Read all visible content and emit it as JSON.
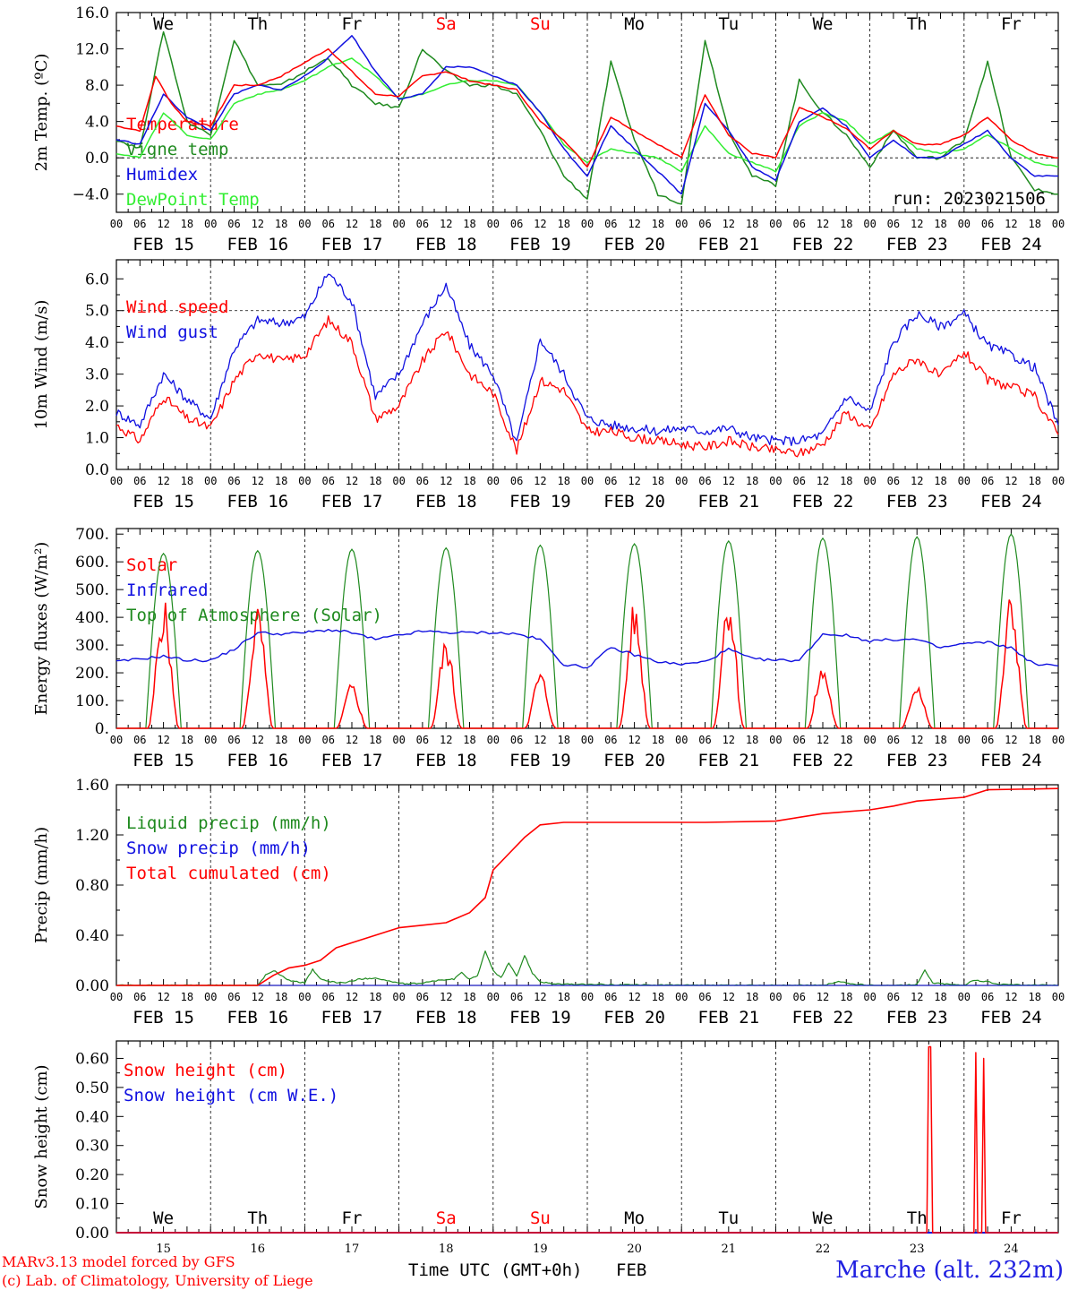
{
  "colors": {
    "temperature": "#ff0000",
    "vigne": "#1f8a1f",
    "humidex": "#1010e0",
    "dewpoint": "#33ee33",
    "wind_speed": "#ff0000",
    "wind_gust": "#1010e0",
    "solar": "#ff0000",
    "infrared": "#1010e0",
    "toa": "#1f8a1f",
    "liquid": "#1f8a1f",
    "snow_precip": "#1010e0",
    "cumulated": "#ff0000",
    "snow_height": "#ff0000",
    "snow_we": "#1010e0",
    "weekend": "#ff0000",
    "footer_site": "#2020e0",
    "credits": "#ff0000"
  },
  "days": {
    "weekday_labels": [
      "We",
      "Th",
      "Fr",
      "Sa",
      "Su",
      "Mo",
      "Tu",
      "We",
      "Th",
      "Fr"
    ],
    "weekend_flags": [
      false,
      false,
      false,
      true,
      true,
      false,
      false,
      false,
      false,
      false
    ],
    "date_labels": [
      "FEB 15",
      "FEB 16",
      "FEB 17",
      "FEB 18",
      "FEB 19",
      "FEB 20",
      "FEB 21",
      "FEB 22",
      "FEB 23",
      "FEB 24"
    ],
    "day_numbers": [
      "15",
      "16",
      "17",
      "18",
      "19",
      "20",
      "21",
      "22",
      "23",
      "24"
    ],
    "hour_ticks": [
      "00",
      "06",
      "12",
      "18"
    ],
    "final_tick": "00"
  },
  "run_label": "run: 2023021506",
  "footer": {
    "credit_line1": "MARv3.13 model forced by GFS",
    "credit_line2": "(c) Lab. of Climatology, University of Liege",
    "axis_title": "Time UTC (GMT+0h)",
    "month": "FEB",
    "site": "Marche (alt. 232m)"
  },
  "chart_data": [
    {
      "type": "line",
      "ylabel": "2m Temp. (ºC)",
      "x_unit": "hours since FEB 15 00 UTC",
      "ylim": [
        -6,
        16
      ],
      "yticks": [
        -4,
        0,
        4,
        8,
        12,
        16
      ],
      "ytick_labels": [
        "−4.0",
        "0.0",
        "4.0",
        "8.0",
        "12.0",
        "16.0"
      ],
      "reference_lines": [
        0
      ],
      "legend": [
        "Temperature",
        "Vigne temp",
        "Humidex",
        "DewPoint Temp"
      ],
      "series": [
        {
          "name": "Temperature",
          "color_key": "temperature",
          "x": [
            0,
            6,
            10,
            14,
            18,
            24,
            30,
            36,
            42,
            48,
            54,
            60,
            66,
            72,
            78,
            84,
            90,
            96,
            102,
            108,
            114,
            120,
            126,
            132,
            138,
            144,
            150,
            156,
            162,
            168,
            174,
            180,
            186,
            192,
            198,
            204,
            210,
            216,
            222,
            228,
            234,
            240
          ],
          "y": [
            3.5,
            3,
            9,
            6,
            4,
            3.5,
            8,
            8,
            9,
            10.5,
            12,
            9.5,
            7,
            6.8,
            9,
            9.5,
            8.5,
            8,
            7.5,
            4,
            2,
            -1,
            4.5,
            3,
            1.5,
            0,
            7,
            2.5,
            0.5,
            0,
            5.5,
            4.5,
            3.2,
            1,
            3,
            1.5,
            1.5,
            2.5,
            4.5,
            2,
            0.5,
            0
          ]
        },
        {
          "name": "Vigne temp",
          "color_key": "vigne",
          "x": [
            0,
            6,
            12,
            18,
            24,
            30,
            36,
            42,
            48,
            54,
            60,
            66,
            72,
            78,
            84,
            90,
            96,
            102,
            108,
            114,
            120,
            126,
            132,
            138,
            144,
            150,
            156,
            162,
            168,
            174,
            180,
            186,
            192,
            198,
            204,
            210,
            216,
            222,
            228,
            234,
            240
          ],
          "y": [
            2,
            1,
            14,
            4,
            2.5,
            13,
            8,
            8,
            9.5,
            11,
            8,
            6,
            5.5,
            12,
            9.5,
            8,
            8,
            7,
            3,
            -2,
            -4.5,
            10.5,
            2,
            -4,
            -5,
            13,
            3,
            -2,
            -3,
            8.5,
            5,
            2.5,
            -1,
            3,
            0,
            0,
            2,
            10.5,
            0,
            -3.5,
            -4
          ]
        },
        {
          "name": "Humidex",
          "color_key": "humidex",
          "x": [
            0,
            6,
            12,
            18,
            24,
            30,
            36,
            42,
            48,
            54,
            60,
            66,
            72,
            78,
            84,
            90,
            96,
            102,
            108,
            114,
            120,
            126,
            132,
            138,
            144,
            150,
            156,
            162,
            168,
            174,
            180,
            186,
            192,
            198,
            204,
            210,
            216,
            222,
            228,
            234,
            240
          ],
          "y": [
            2,
            1.5,
            7,
            4.5,
            3,
            7,
            8,
            7.5,
            9,
            11,
            13.5,
            9.5,
            6.5,
            7,
            10,
            10,
            9,
            8,
            5,
            1,
            -2,
            3.5,
            1,
            -1.5,
            -4,
            6,
            3,
            -1,
            -2.5,
            4,
            5.5,
            3.5,
            0,
            2,
            0,
            0,
            1.5,
            3,
            0,
            -2,
            -2
          ]
        },
        {
          "name": "DewPoint Temp",
          "color_key": "dewpoint",
          "x": [
            0,
            6,
            12,
            18,
            24,
            30,
            36,
            42,
            48,
            54,
            60,
            66,
            72,
            78,
            84,
            90,
            96,
            102,
            108,
            114,
            120,
            126,
            132,
            138,
            144,
            150,
            156,
            162,
            168,
            174,
            180,
            186,
            192,
            198,
            204,
            210,
            216,
            222,
            228,
            234,
            240
          ],
          "y": [
            0.5,
            0,
            5,
            2.5,
            2,
            6,
            7,
            7.5,
            8.5,
            10,
            11,
            9,
            6.5,
            7,
            8,
            8.5,
            8.5,
            8,
            5,
            1.5,
            -0.5,
            1,
            0.5,
            0,
            -1.5,
            3.5,
            0.5,
            -0.5,
            -1.5,
            3.5,
            5,
            4,
            1.5,
            3,
            1,
            0.5,
            1,
            2.5,
            1,
            -0.5,
            -1
          ]
        }
      ]
    },
    {
      "type": "line",
      "ylabel": "10m Wind (m/s)",
      "x_unit": "hours since FEB 15 00 UTC",
      "ylim": [
        0,
        6.6
      ],
      "yticks": [
        0,
        1,
        2,
        3,
        4,
        5,
        6
      ],
      "ytick_labels": [
        "0.0",
        "1.0",
        "2.0",
        "3.0",
        "4.0",
        "5.0",
        "6.0"
      ],
      "reference_lines": [
        5
      ],
      "legend": [
        "Wind speed",
        "Wind gust"
      ],
      "series": [
        {
          "name": "Wind speed",
          "color_key": "wind_speed",
          "x": [
            0,
            6,
            12,
            18,
            24,
            30,
            36,
            42,
            48,
            54,
            60,
            66,
            72,
            78,
            84,
            90,
            96,
            102,
            108,
            114,
            120,
            126,
            132,
            138,
            144,
            150,
            156,
            162,
            168,
            174,
            180,
            186,
            192,
            198,
            204,
            210,
            216,
            222,
            228,
            234,
            240
          ],
          "y": [
            1.4,
            0.9,
            2.3,
            1.6,
            1.3,
            2.8,
            3.7,
            3.4,
            3.6,
            4.7,
            4.0,
            1.6,
            2.0,
            3.4,
            4.4,
            3.0,
            2.4,
            0.6,
            2.8,
            2.5,
            1.2,
            1.2,
            1.0,
            0.9,
            0.8,
            0.7,
            0.9,
            0.7,
            0.6,
            0.5,
            0.8,
            1.8,
            1.2,
            3.0,
            3.5,
            2.9,
            3.7,
            2.8,
            2.6,
            2.3,
            1.1
          ]
        },
        {
          "name": "Wind gust",
          "color_key": "wind_gust",
          "x": [
            0,
            6,
            12,
            18,
            24,
            30,
            36,
            42,
            48,
            54,
            60,
            66,
            72,
            78,
            84,
            90,
            96,
            102,
            108,
            114,
            120,
            126,
            132,
            138,
            144,
            150,
            156,
            162,
            168,
            174,
            180,
            186,
            192,
            198,
            204,
            210,
            216,
            222,
            228,
            234,
            240
          ],
          "y": [
            1.8,
            1.4,
            3.0,
            2.2,
            1.6,
            3.8,
            4.7,
            4.6,
            4.8,
            6.2,
            5.3,
            2.3,
            3.0,
            4.6,
            5.8,
            3.9,
            3.0,
            0.8,
            4.1,
            3.0,
            1.6,
            1.4,
            1.3,
            1.2,
            1.3,
            1.2,
            1.3,
            1.0,
            0.9,
            0.9,
            1.1,
            2.3,
            1.8,
            4.0,
            4.9,
            4.5,
            4.9,
            3.9,
            3.6,
            3.2,
            1.4
          ]
        }
      ]
    },
    {
      "type": "line",
      "ylabel": "Energy fluxes (W/m²)",
      "x_unit": "hours since FEB 15 00 UTC",
      "ylim": [
        0,
        720
      ],
      "yticks": [
        0,
        100,
        200,
        300,
        400,
        500,
        600,
        700
      ],
      "ytick_labels": [
        "0.",
        "100.",
        "200.",
        "300.",
        "400.",
        "500.",
        "600.",
        "700."
      ],
      "legend": [
        "Solar",
        "Infrared",
        "Top of Atmosphere (Solar)"
      ],
      "toa_peaks": [
        630,
        640,
        645,
        650,
        660,
        665,
        675,
        685,
        690,
        700
      ],
      "solar_peaks": [
        430,
        405,
        150,
        300,
        190,
        415,
        465,
        210,
        160,
        450
      ],
      "series": [
        {
          "name": "Infrared",
          "color_key": "infrared",
          "x": [
            0,
            12,
            18,
            24,
            30,
            36,
            42,
            48,
            54,
            60,
            66,
            72,
            78,
            84,
            90,
            96,
            102,
            108,
            114,
            120,
            126,
            132,
            138,
            144,
            150,
            156,
            162,
            168,
            174,
            180,
            186,
            192,
            198,
            204,
            210,
            216,
            222,
            228,
            234,
            240
          ],
          "y": [
            240,
            260,
            245,
            245,
            285,
            345,
            340,
            345,
            355,
            345,
            320,
            335,
            350,
            345,
            345,
            345,
            340,
            320,
            230,
            220,
            290,
            265,
            240,
            230,
            240,
            285,
            250,
            245,
            245,
            340,
            335,
            315,
            320,
            320,
            290,
            305,
            310,
            290,
            230,
            225
          ]
        }
      ]
    },
    {
      "type": "line",
      "ylabel": "Precip (mm/h)",
      "x_unit": "hours since FEB 15 00 UTC",
      "ylim": [
        0,
        1.6
      ],
      "yticks": [
        0,
        0.4,
        0.8,
        1.2,
        1.6
      ],
      "ytick_labels": [
        "0.00",
        "0.40",
        "0.80",
        "1.20",
        "1.60"
      ],
      "legend": [
        "Liquid precip (mm/h)",
        "Snow precip (mm/h)",
        "Total cumulated (cm)"
      ],
      "series": [
        {
          "name": "Total cumulated (cm)",
          "color_key": "cumulated",
          "x": [
            0,
            36,
            40,
            44,
            48,
            52,
            56,
            60,
            66,
            72,
            78,
            84,
            90,
            94,
            96,
            100,
            104,
            108,
            114,
            126,
            150,
            168,
            180,
            192,
            198,
            204,
            216,
            222,
            240
          ],
          "y": [
            0,
            0,
            0.08,
            0.14,
            0.16,
            0.2,
            0.3,
            0.34,
            0.4,
            0.46,
            0.48,
            0.5,
            0.58,
            0.7,
            0.92,
            1.05,
            1.18,
            1.28,
            1.3,
            1.3,
            1.3,
            1.31,
            1.37,
            1.4,
            1.43,
            1.47,
            1.5,
            1.56,
            1.57
          ]
        },
        {
          "name": "Liquid precip (mm/h)",
          "color_key": "liquid",
          "x": [
            0,
            36,
            38,
            40,
            44,
            48,
            50,
            52,
            54,
            58,
            62,
            66,
            70,
            74,
            78,
            82,
            86,
            88,
            90,
            92,
            94,
            96,
            98,
            100,
            102,
            104,
            106,
            108,
            112,
            150,
            180,
            184,
            188,
            192,
            200,
            204,
            206,
            208,
            216,
            218,
            222,
            224,
            240
          ],
          "y": [
            0,
            0,
            0.08,
            0.12,
            0.04,
            0.02,
            0.13,
            0.05,
            0.03,
            0.02,
            0.05,
            0.06,
            0.03,
            0.01,
            0.02,
            0.04,
            0.05,
            0.1,
            0.05,
            0.08,
            0.27,
            0.12,
            0.06,
            0.18,
            0.07,
            0.24,
            0.1,
            0.03,
            0.01,
            0,
            0,
            0.03,
            0.01,
            0,
            0,
            0.01,
            0.12,
            0.02,
            0,
            0.04,
            0.03,
            0.01,
            0
          ]
        }
      ]
    },
    {
      "type": "line",
      "ylabel": "Snow height (cm)",
      "x_unit": "hours since FEB 15 00 UTC",
      "ylim": [
        0,
        0.66
      ],
      "yticks": [
        0,
        0.1,
        0.2,
        0.3,
        0.4,
        0.5,
        0.6
      ],
      "ytick_labels": [
        "0.00",
        "0.10",
        "0.20",
        "0.30",
        "0.40",
        "0.50",
        "0.60"
      ],
      "legend": [
        "Snow height (cm)",
        "Snow height (cm W.E.)"
      ],
      "series": [
        {
          "name": "Snow height (cm)",
          "color_key": "snow_height",
          "x": [
            0,
            206.5,
            207,
            207.5,
            208,
            218.5,
            219,
            219.5,
            220.5,
            221,
            221.5,
            240
          ],
          "y": [
            0,
            0,
            0.64,
            0.64,
            0,
            0,
            0.62,
            0,
            0,
            0.6,
            0,
            0
          ]
        }
      ]
    }
  ]
}
